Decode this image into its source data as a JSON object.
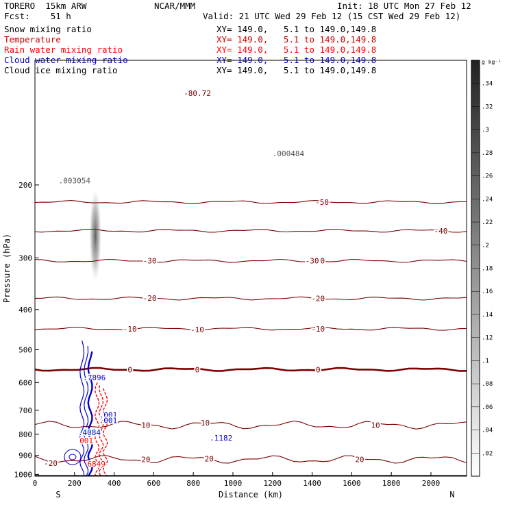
{
  "header": {
    "model": "TORERO  15km ARW",
    "org": "NCAR/MMM",
    "init": "Init: 18 UTC Mon 27 Feb 12",
    "fcst": "Fcst:    51 h",
    "valid": "Valid: 21 UTC Wed 29 Feb 12 (15 CST Wed 29 Feb 12)"
  },
  "fields": [
    {
      "name": "Snow mixing ratio",
      "xy": "XY= 149.0,   5.1 to 149.0,149.8",
      "color": "#000000"
    },
    {
      "name": "Temperature",
      "xy": "XY= 149.0,   5.1 to 149.0,149.8",
      "color": "#cc0000"
    },
    {
      "name": "Rain water mixing ratio",
      "xy": "XY= 149.0,   5.1 to 149.0,149.8",
      "color": "#ff0000"
    },
    {
      "name": "Cloud water mixing ratio",
      "xy": "XY= 149.0,   5.1 to 149.0,149.8",
      "color": "#0000cc"
    },
    {
      "name": "Cloud ice mixing ratio",
      "xy": "XY= 149.0,   5.1 to 149.0,149.8",
      "color": "#000000"
    }
  ],
  "colors": {
    "temperature": "#7a0000",
    "rain": "#ff0000",
    "cloud_water": "#0000cc",
    "snow": "#555555",
    "ground": "#000000"
  },
  "chart_data": {
    "type": "contour",
    "xlabel": "Distance (km)",
    "ylabel": "Pressure (hPa)",
    "xlim": [
      0,
      2180
    ],
    "ylim": [
      1010,
      100
    ],
    "x_ticks": [
      0,
      200,
      400,
      600,
      800,
      1000,
      1200,
      1400,
      1600,
      1800,
      2000
    ],
    "y_ticks": [
      200,
      300,
      400,
      500,
      600,
      700,
      800,
      900,
      1000
    ],
    "x_end_labels": {
      "left": "S",
      "right": "N"
    },
    "temperature_isotherms": [
      {
        "value": 0,
        "pressure": 558,
        "labels_at_km": [
          480,
          1430
        ]
      },
      {
        "value": -10,
        "pressure": 445,
        "labels_at_km": [
          480,
          1430
        ]
      },
      {
        "value": -20,
        "pressure": 376,
        "labels_at_km": [
          580,
          1430
        ]
      },
      {
        "value": -30,
        "pressure": 305,
        "labels_at_km": [
          580,
          1430
        ]
      },
      {
        "value": -40,
        "pressure": 258,
        "labels_at_km": [
          2050
        ]
      },
      {
        "value": -50,
        "pressure": 220,
        "labels_at_km": [
          1450
        ]
      },
      {
        "value": 10,
        "pressure": 760,
        "labels_at_km": [
          560,
          1720
        ]
      },
      {
        "value": 20,
        "pressure": 920,
        "labels_at_km": [
          560,
          1640
        ]
      }
    ],
    "extra_labels": [
      {
        "text": "-80.72",
        "x_km": 820,
        "p": 120,
        "color": "temperature"
      },
      {
        "text": "-20",
        "x_km": 580,
        "p": 375,
        "color": "temperature"
      },
      {
        "text": "-10",
        "x_km": 820,
        "p": 447,
        "color": "temperature"
      },
      {
        "text": "0",
        "x_km": 820,
        "p": 558,
        "color": "temperature"
      },
      {
        "text": "10",
        "x_km": 860,
        "p": 750,
        "color": "temperature"
      },
      {
        "text": "-30",
        "x_km": 1400,
        "p": 305,
        "color": "temperature"
      },
      {
        "text": "20",
        "x_km": 880,
        "p": 917,
        "color": "temperature"
      },
      {
        "text": "-20",
        "x_km": 80,
        "p": 940,
        "color": "temperature"
      }
    ],
    "maxima": [
      {
        "text": ".003054",
        "x_km": 200,
        "p": 195,
        "color": "snow"
      },
      {
        "text": ".000484",
        "x_km": 1280,
        "p": 168,
        "color": "snow"
      },
      {
        "text": ".7896",
        "x_km": 300,
        "p": 584,
        "color": "cloud_water"
      },
      {
        "text": ".001",
        "x_km": 370,
        "p": 718,
        "color": "cloud_water"
      },
      {
        "text": ".001",
        "x_km": 370,
        "p": 741,
        "color": "cloud_water"
      },
      {
        "text": ".4084",
        "x_km": 275,
        "p": 792,
        "color": "cloud_water"
      },
      {
        "text": "001",
        "x_km": 260,
        "p": 829,
        "color": "rain"
      },
      {
        "text": ".1182",
        "x_km": 940,
        "p": 816,
        "color": "cloud_water"
      },
      {
        "text": "6849",
        "x_km": 310,
        "p": 943,
        "color": "rain"
      }
    ],
    "colorbar": {
      "unit": "g kg⁻¹",
      "ticks": [
        0.02,
        0.04,
        0.06,
        0.08,
        0.1,
        0.12,
        0.14,
        0.16,
        0.18,
        0.2,
        0.22,
        0.24,
        0.26,
        0.28,
        0.3,
        0.32,
        0.34
      ],
      "tick_labels": [
        ".02",
        ".04",
        ".06",
        ".08",
        ".1",
        ".12",
        ".14",
        ".16",
        ".18",
        ".2",
        ".22",
        ".24",
        ".26",
        ".28",
        ".3",
        ".32",
        ".34"
      ],
      "range": [
        0,
        0.36
      ]
    }
  }
}
